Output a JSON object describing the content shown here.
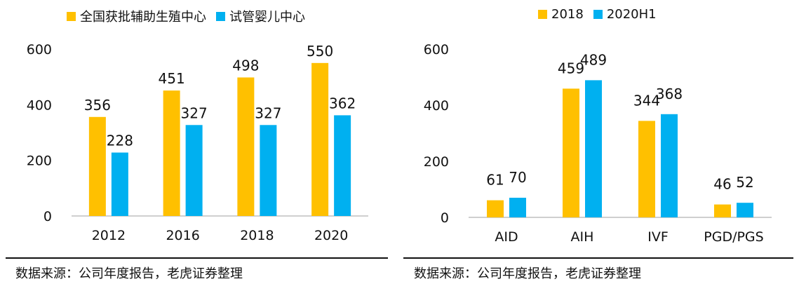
{
  "colors": {
    "series1": "#ffc000",
    "series2": "#00b0f0",
    "axis": "#bfbfbf",
    "text": "#111111"
  },
  "chart_data": [
    {
      "type": "bar",
      "categories": [
        "2012",
        "2016",
        "2018",
        "2020"
      ],
      "series": [
        {
          "name": "全国获批辅助生殖中心",
          "values": [
            356,
            451,
            498,
            550
          ]
        },
        {
          "name": "试管婴儿中心",
          "values": [
            228,
            327,
            327,
            362
          ]
        }
      ],
      "ylim": [
        0,
        600
      ],
      "yticks": [
        "0",
        "200",
        "400",
        "600"
      ],
      "legend": "top-left",
      "grid": false,
      "source": "数据来源：公司年度报告，老虎证券整理"
    },
    {
      "type": "bar",
      "categories": [
        "AID",
        "AIH",
        "IVF",
        "PGD/PGS"
      ],
      "series": [
        {
          "name": "2018",
          "values": [
            61,
            459,
            344,
            46
          ]
        },
        {
          "name": "2020H1",
          "values": [
            70,
            489,
            368,
            52
          ]
        }
      ],
      "ylim": [
        0,
        600
      ],
      "yticks": [
        "0",
        "200",
        "400",
        "600"
      ],
      "legend": "top-center",
      "grid": false,
      "source": "数据来源：公司年度报告，老虎证券整理"
    }
  ]
}
